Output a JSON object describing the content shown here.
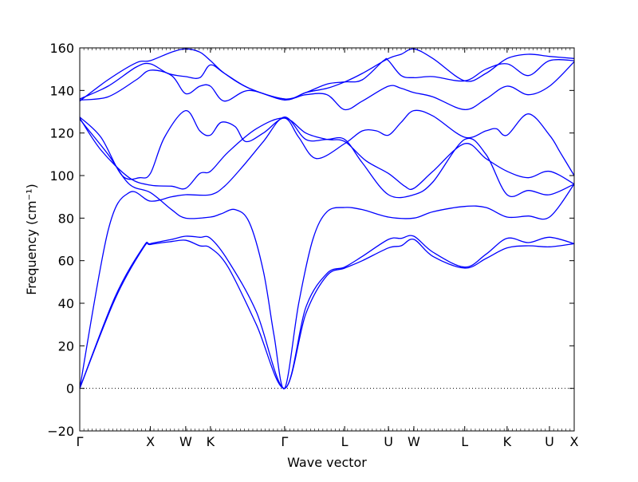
{
  "chart_data": {
    "type": "line",
    "title": "",
    "xlabel": "Wave vector",
    "ylabel": "Frequency (cm⁻¹)",
    "ylim": [
      -20,
      160
    ],
    "yticks": [
      -20,
      0,
      20,
      40,
      60,
      80,
      100,
      120,
      140,
      160
    ],
    "xlim": [
      0,
      7.0
    ],
    "xticks": [
      {
        "label": "Γ",
        "x": 0.0
      },
      {
        "label": "X",
        "x": 1.0
      },
      {
        "label": "W",
        "x": 1.5
      },
      {
        "label": "K",
        "x": 1.85
      },
      {
        "label": "Γ",
        "x": 2.9
      },
      {
        "label": "L",
        "x": 3.75
      },
      {
        "label": "U",
        "x": 4.37
      },
      {
        "label": "W",
        "x": 4.73
      },
      {
        "label": "L",
        "x": 5.45
      },
      {
        "label": "K",
        "x": 6.05
      },
      {
        "label": "U",
        "x": 6.65
      },
      {
        "label": "X",
        "x": 7.0
      }
    ],
    "zero_line": true,
    "grid": false,
    "legend": "none",
    "line_color": "#0000ff",
    "branches": [
      {
        "points": [
          [
            0,
            0
          ],
          [
            0.5,
            42
          ],
          [
            0.9,
            66
          ],
          [
            1.0,
            67.6
          ],
          [
            1.3,
            69
          ],
          [
            1.5,
            69.6
          ],
          [
            1.7,
            67
          ],
          [
            1.85,
            66
          ],
          [
            2.1,
            57
          ],
          [
            2.5,
            30
          ],
          [
            2.9,
            0
          ],
          [
            3.2,
            35
          ],
          [
            3.5,
            53
          ],
          [
            3.75,
            56.5
          ],
          [
            4.0,
            60
          ],
          [
            4.37,
            66
          ],
          [
            4.55,
            67
          ],
          [
            4.73,
            70
          ],
          [
            5.0,
            62
          ],
          [
            5.45,
            56.5
          ],
          [
            5.75,
            61
          ],
          [
            6.05,
            66
          ],
          [
            6.35,
            67
          ],
          [
            6.65,
            66.5
          ],
          [
            7.0,
            68
          ]
        ]
      },
      {
        "points": [
          [
            0,
            0
          ],
          [
            0.5,
            43
          ],
          [
            0.9,
            66.5
          ],
          [
            1.0,
            68
          ],
          [
            1.3,
            70
          ],
          [
            1.5,
            71.5
          ],
          [
            1.7,
            71
          ],
          [
            1.85,
            70.5
          ],
          [
            2.1,
            60
          ],
          [
            2.5,
            36
          ],
          [
            2.9,
            0
          ],
          [
            3.2,
            38
          ],
          [
            3.5,
            54
          ],
          [
            3.75,
            57
          ],
          [
            4.0,
            62
          ],
          [
            4.37,
            70
          ],
          [
            4.55,
            70.5
          ],
          [
            4.73,
            71.5
          ],
          [
            5.0,
            64
          ],
          [
            5.45,
            57
          ],
          [
            5.75,
            63
          ],
          [
            6.05,
            70.5
          ],
          [
            6.35,
            68.5
          ],
          [
            6.65,
            71
          ],
          [
            7.0,
            68
          ]
        ]
      },
      {
        "points": [
          [
            0,
            0
          ],
          [
            0.4,
            74
          ],
          [
            0.7,
            92
          ],
          [
            1.0,
            88
          ],
          [
            1.3,
            90
          ],
          [
            1.5,
            91
          ],
          [
            1.85,
            91
          ],
          [
            2.05,
            95
          ],
          [
            2.3,
            104
          ],
          [
            2.6,
            116
          ],
          [
            2.9,
            127.5
          ],
          [
            3.2,
            117
          ],
          [
            3.5,
            117
          ],
          [
            3.75,
            117
          ],
          [
            4.0,
            106
          ],
          [
            4.37,
            91
          ],
          [
            4.73,
            91
          ],
          [
            5.0,
            97
          ],
          [
            5.45,
            117
          ],
          [
            5.75,
            110
          ],
          [
            6.05,
            91
          ],
          [
            6.35,
            93
          ],
          [
            6.65,
            91
          ],
          [
            7.0,
            96
          ]
        ]
      },
      {
        "points": [
          [
            0,
            127
          ],
          [
            0.3,
            112
          ],
          [
            0.7,
            99
          ],
          [
            1.0,
            95.5
          ],
          [
            1.3,
            95
          ],
          [
            1.5,
            94
          ],
          [
            1.7,
            101
          ],
          [
            1.85,
            102
          ],
          [
            2.1,
            111
          ],
          [
            2.5,
            122
          ],
          [
            2.9,
            127
          ],
          [
            3.2,
            120
          ],
          [
            3.5,
            117
          ],
          [
            3.75,
            116
          ],
          [
            4.05,
            107
          ],
          [
            4.37,
            101
          ],
          [
            4.6,
            95
          ],
          [
            4.73,
            94
          ],
          [
            5.0,
            102
          ],
          [
            5.45,
            115
          ],
          [
            5.75,
            108
          ],
          [
            6.05,
            102
          ],
          [
            6.35,
            99
          ],
          [
            6.65,
            102
          ],
          [
            7.0,
            96
          ]
        ]
      },
      {
        "points": [
          [
            0,
            126.5
          ],
          [
            0.4,
            110
          ],
          [
            0.7,
            96
          ],
          [
            1.0,
            92
          ],
          [
            1.3,
            84
          ],
          [
            1.5,
            80
          ],
          [
            1.85,
            80.5
          ],
          [
            2.0,
            82
          ],
          [
            2.2,
            84
          ],
          [
            2.4,
            78
          ],
          [
            2.6,
            55
          ],
          [
            2.75,
            25
          ],
          [
            2.9,
            0
          ],
          [
            3.1,
            40
          ],
          [
            3.3,
            70
          ],
          [
            3.5,
            83
          ],
          [
            3.75,
            85
          ],
          [
            4.0,
            84
          ],
          [
            4.37,
            80.5
          ],
          [
            4.73,
            80
          ],
          [
            5.0,
            83
          ],
          [
            5.45,
            85.5
          ],
          [
            5.75,
            85
          ],
          [
            6.05,
            80.5
          ],
          [
            6.35,
            81
          ],
          [
            6.65,
            80.5
          ],
          [
            7.0,
            96
          ]
        ]
      },
      {
        "points": [
          [
            0,
            127.5
          ],
          [
            0.3,
            118
          ],
          [
            0.6,
            100
          ],
          [
            0.85,
            99
          ],
          [
            1.0,
            101
          ],
          [
            1.2,
            118
          ],
          [
            1.5,
            130.5
          ],
          [
            1.7,
            121
          ],
          [
            1.85,
            119
          ],
          [
            2.0,
            125
          ],
          [
            2.2,
            123
          ],
          [
            2.35,
            116
          ],
          [
            2.6,
            120
          ],
          [
            2.9,
            127
          ],
          [
            3.1,
            118
          ],
          [
            3.35,
            108
          ],
          [
            3.75,
            115
          ],
          [
            4.0,
            121
          ],
          [
            4.2,
            121
          ],
          [
            4.37,
            119
          ],
          [
            4.55,
            125
          ],
          [
            4.73,
            130.5
          ],
          [
            5.0,
            128
          ],
          [
            5.45,
            118
          ],
          [
            5.75,
            121
          ],
          [
            5.9,
            122
          ],
          [
            6.05,
            119
          ],
          [
            6.35,
            129
          ],
          [
            6.65,
            119
          ],
          [
            6.8,
            111
          ],
          [
            7.0,
            100
          ]
        ]
      },
      {
        "points": [
          [
            0,
            136
          ],
          [
            0.4,
            142
          ],
          [
            0.8,
            151
          ],
          [
            1.0,
            152.5
          ],
          [
            1.25,
            148
          ],
          [
            1.5,
            146.5
          ],
          [
            1.7,
            146
          ],
          [
            1.85,
            152
          ],
          [
            2.05,
            148
          ],
          [
            2.4,
            141
          ],
          [
            2.9,
            136
          ],
          [
            3.2,
            139
          ],
          [
            3.5,
            143
          ],
          [
            3.75,
            144
          ],
          [
            4.0,
            145
          ],
          [
            4.3,
            154
          ],
          [
            4.37,
            154
          ],
          [
            4.55,
            147
          ],
          [
            4.73,
            146
          ],
          [
            5.0,
            146.5
          ],
          [
            5.45,
            144.5
          ],
          [
            5.75,
            150
          ],
          [
            6.05,
            152.5
          ],
          [
            6.35,
            147
          ],
          [
            6.65,
            154
          ],
          [
            7.0,
            154
          ]
        ]
      },
      {
        "points": [
          [
            0,
            135.5
          ],
          [
            0.4,
            137
          ],
          [
            0.8,
            145
          ],
          [
            1.0,
            149.5
          ],
          [
            1.3,
            147
          ],
          [
            1.5,
            138.5
          ],
          [
            1.7,
            142
          ],
          [
            1.85,
            142
          ],
          [
            2.05,
            135
          ],
          [
            2.4,
            140
          ],
          [
            2.9,
            135.5
          ],
          [
            3.2,
            139
          ],
          [
            3.5,
            141
          ],
          [
            3.75,
            144
          ],
          [
            4.0,
            148
          ],
          [
            4.37,
            155
          ],
          [
            4.55,
            157
          ],
          [
            4.73,
            159.5
          ],
          [
            5.0,
            155
          ],
          [
            5.45,
            144.5
          ],
          [
            5.75,
            148
          ],
          [
            6.05,
            155
          ],
          [
            6.35,
            157
          ],
          [
            6.65,
            156
          ],
          [
            7.0,
            155
          ]
        ]
      },
      {
        "points": [
          [
            0,
            135
          ],
          [
            0.4,
            145
          ],
          [
            0.8,
            153
          ],
          [
            1.0,
            154
          ],
          [
            1.3,
            158
          ],
          [
            1.5,
            159.5
          ],
          [
            1.7,
            158
          ],
          [
            1.85,
            154
          ],
          [
            2.05,
            148
          ],
          [
            2.4,
            141
          ],
          [
            2.9,
            136
          ],
          [
            3.2,
            138
          ],
          [
            3.5,
            138
          ],
          [
            3.75,
            131
          ],
          [
            4.0,
            135
          ],
          [
            4.37,
            142
          ],
          [
            4.55,
            141
          ],
          [
            4.73,
            139
          ],
          [
            5.0,
            137
          ],
          [
            5.45,
            131
          ],
          [
            5.75,
            136
          ],
          [
            6.05,
            142
          ],
          [
            6.35,
            138
          ],
          [
            6.65,
            142
          ],
          [
            7.0,
            153.5
          ]
        ]
      }
    ]
  }
}
